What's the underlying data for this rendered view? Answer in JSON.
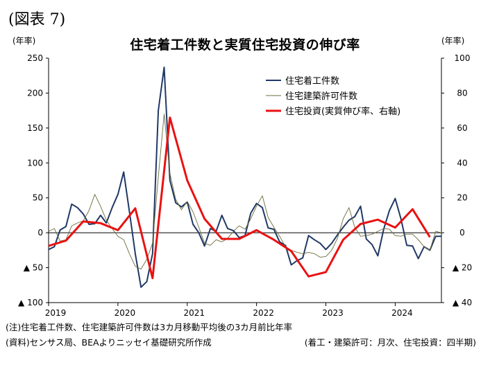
{
  "figure_label": "(図表 7)",
  "left_unit": "(年率)",
  "right_unit": "(年率)",
  "chart_data": {
    "type": "line",
    "title": "住宅着工件数と実質住宅投資の伸び率",
    "left_axis": {
      "ylim": [
        -100,
        250
      ],
      "ticks": [
        "▲ 100",
        "▲ 50",
        "0",
        "50",
        "100",
        "150",
        "200",
        "250"
      ],
      "tick_values": [
        -100,
        -50,
        0,
        50,
        100,
        150,
        200,
        250
      ]
    },
    "right_axis": {
      "ylim": [
        -40,
        100
      ],
      "ticks": [
        "▲ 40",
        "▲ 20",
        "0",
        "20",
        "40",
        "60",
        "80",
        "100"
      ],
      "tick_values": [
        -40,
        -20,
        0,
        20,
        40,
        60,
        80,
        100
      ]
    },
    "x_ticks": [
      "2019",
      "2020",
      "2021",
      "2022",
      "2023",
      "2024"
    ],
    "x_range": [
      "2019-01",
      "2024-09"
    ],
    "grid": false,
    "legend_position": "top-right",
    "series": [
      {
        "name": "住宅着工件数",
        "axis": "left",
        "color": "#1f3864",
        "x": [
          "2019-01",
          "2019-02",
          "2019-03",
          "2019-04",
          "2019-05",
          "2019-06",
          "2019-07",
          "2019-08",
          "2019-09",
          "2019-10",
          "2019-11",
          "2019-12",
          "2020-01",
          "2020-02",
          "2020-03",
          "2020-04",
          "2020-05",
          "2020-06",
          "2020-07",
          "2020-08",
          "2020-09",
          "2020-10",
          "2020-11",
          "2020-12",
          "2021-01",
          "2021-02",
          "2021-03",
          "2021-04",
          "2021-05",
          "2021-06",
          "2021-07",
          "2021-08",
          "2021-09",
          "2021-10",
          "2021-11",
          "2021-12",
          "2022-01",
          "2022-02",
          "2022-03",
          "2022-04",
          "2022-05",
          "2022-06",
          "2022-07",
          "2022-08",
          "2022-09",
          "2022-10",
          "2022-11",
          "2022-12",
          "2023-01",
          "2023-02",
          "2023-03",
          "2023-04",
          "2023-05",
          "2023-06",
          "2023-07",
          "2023-08",
          "2023-09",
          "2023-10",
          "2023-11",
          "2023-12",
          "2024-01",
          "2024-02",
          "2024-03",
          "2024-04",
          "2024-05",
          "2024-06",
          "2024-07",
          "2024-08",
          "2024-09"
        ],
        "values": [
          -24,
          -20,
          4,
          9,
          41,
          36,
          27,
          12,
          13,
          25,
          14,
          36,
          55,
          87,
          30,
          -30,
          -78,
          -70,
          -30,
          175,
          237,
          75,
          43,
          37,
          44,
          12,
          0,
          -19,
          6,
          2,
          25,
          6,
          3,
          -7,
          -4,
          28,
          42,
          36,
          7,
          5,
          -13,
          -18,
          -46,
          -40,
          -36,
          -4,
          -10,
          -15,
          -24,
          -15,
          -3,
          8,
          18,
          23,
          38,
          -9,
          -17,
          -33,
          5,
          32,
          49,
          20,
          -18,
          -19,
          -37,
          -20,
          -25,
          -5,
          -5
        ]
      },
      {
        "name": "住宅建築許可件数",
        "axis": "left",
        "color": "#6b6b3a",
        "x": [
          "2019-01",
          "2019-02",
          "2019-03",
          "2019-04",
          "2019-05",
          "2019-06",
          "2019-07",
          "2019-08",
          "2019-09",
          "2019-10",
          "2019-11",
          "2019-12",
          "2020-01",
          "2020-02",
          "2020-03",
          "2020-04",
          "2020-05",
          "2020-06",
          "2020-07",
          "2020-08",
          "2020-09",
          "2020-10",
          "2020-11",
          "2020-12",
          "2021-01",
          "2021-02",
          "2021-03",
          "2021-04",
          "2021-05",
          "2021-06",
          "2021-07",
          "2021-08",
          "2021-09",
          "2021-10",
          "2021-11",
          "2021-12",
          "2022-01",
          "2022-02",
          "2022-03",
          "2022-04",
          "2022-05",
          "2022-06",
          "2022-07",
          "2022-08",
          "2022-09",
          "2022-10",
          "2022-11",
          "2022-12",
          "2023-01",
          "2023-02",
          "2023-03",
          "2023-04",
          "2023-05",
          "2023-06",
          "2023-07",
          "2023-08",
          "2023-09",
          "2023-10",
          "2023-11",
          "2023-12",
          "2024-01",
          "2024-02",
          "2024-03",
          "2024-04",
          "2024-05",
          "2024-06",
          "2024-07",
          "2024-08",
          "2024-09"
        ],
        "values": [
          2,
          6,
          -12,
          -10,
          10,
          14,
          17,
          32,
          55,
          38,
          18,
          6,
          -5,
          -10,
          -30,
          -48,
          -52,
          -38,
          -15,
          80,
          170,
          85,
          48,
          33,
          45,
          30,
          8,
          -15,
          -18,
          -10,
          -13,
          -8,
          2,
          10,
          5,
          20,
          38,
          53,
          22,
          8,
          -5,
          -20,
          -25,
          -28,
          -30,
          -28,
          -30,
          -35,
          -34,
          -25,
          -8,
          20,
          36,
          8,
          -5,
          -4,
          -2,
          2,
          6,
          5,
          -4,
          -5,
          -2,
          -2,
          -10,
          -20,
          -25,
          2,
          0
        ]
      },
      {
        "name": "住宅投資(実質伸び率、右軸)",
        "axis": "right",
        "color": "#ea1111",
        "x": [
          "2019-01",
          "2019-04",
          "2019-07",
          "2019-10",
          "2020-01",
          "2020-04",
          "2020-07",
          "2020-10",
          "2021-01",
          "2021-04",
          "2021-07",
          "2021-10",
          "2022-01",
          "2022-04",
          "2022-07",
          "2022-10",
          "2023-01",
          "2023-04",
          "2023-07",
          "2023-10",
          "2024-01",
          "2024-04",
          "2024-07"
        ],
        "values": [
          -7.5,
          -4.5,
          6.5,
          5.5,
          1.5,
          14,
          -26,
          66,
          30,
          8,
          -3.5,
          -3.5,
          1.5,
          -4,
          -10.5,
          -25,
          -22.5,
          -4,
          5,
          7.5,
          3,
          13.5,
          -2.5
        ]
      }
    ]
  },
  "notes": {
    "note1": "(注)住宅着工件数、住宅建築許可件数は3カ月移動平均後の3カ月前比年率",
    "note2": "(資料)センサス局、BEAよりニッセイ基礎研究所作成",
    "note3": "(着工・建築許可：月次、住宅投資：四半期)"
  }
}
